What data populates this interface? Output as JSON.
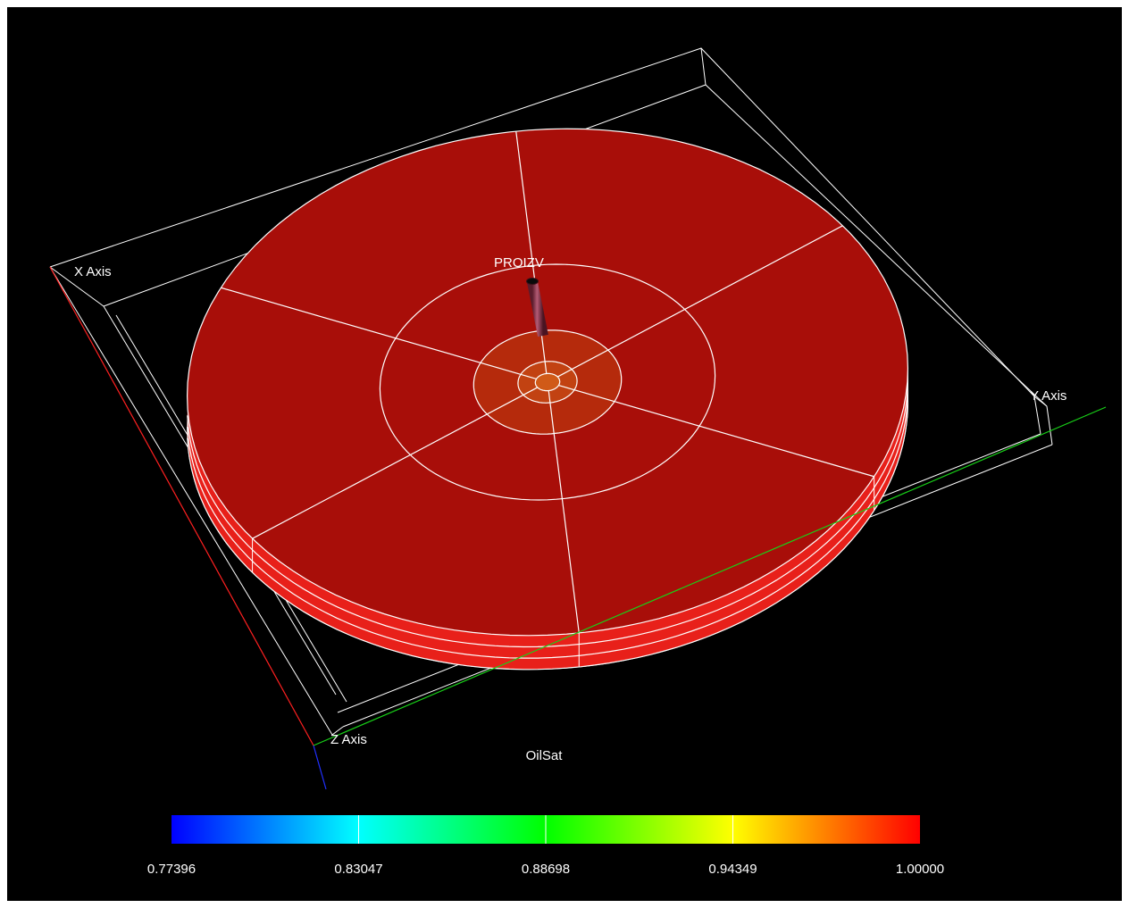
{
  "scene": {
    "axes": {
      "x_label": "X Axis",
      "y_label": "Y Axis",
      "z_label": "Z Axis",
      "x_color": "#ff2020",
      "y_color": "#18d018",
      "z_color": "#2030ff"
    },
    "well": {
      "name": "PROIZV",
      "color": "#8a3046"
    },
    "reservoir": {
      "top_color": "#a80e09",
      "side_color": "#e8201a",
      "grid_line_color": "#ffffff",
      "layers": 3,
      "sectors": 6,
      "rings": 4
    }
  },
  "colorbar": {
    "title": "OilSat",
    "min": 0.77396,
    "max": 1.0,
    "tick_labels": [
      "0.77396",
      "0.83047",
      "0.88698",
      "0.94349",
      "1.00000"
    ],
    "colors": [
      "#0000ff",
      "#00ffff",
      "#00ff00",
      "#ffff00",
      "#ff0000"
    ]
  }
}
